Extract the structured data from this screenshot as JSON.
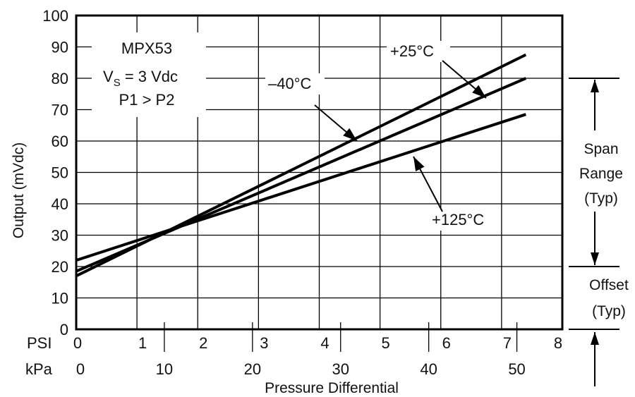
{
  "chart_data": {
    "type": "line",
    "ylabel": "Output (mVdc)",
    "xlabel": "Pressure Differential",
    "psi_label": "PSI",
    "kpa_label": "kPa",
    "psi_ticks": [
      "0",
      "1",
      "2",
      "3",
      "4",
      "5",
      "6",
      "7",
      "8"
    ],
    "kpa_ticks": [
      "0",
      "10",
      "20",
      "30",
      "40",
      "50"
    ],
    "y_ticks": [
      "0",
      "10",
      "20",
      "30",
      "40",
      "50",
      "60",
      "70",
      "80",
      "90",
      "100"
    ],
    "xlim_psi": [
      0,
      8
    ],
    "ylim": [
      0,
      100
    ],
    "grid": true,
    "info_box": [
      "MPX53",
      "V",
      "S",
      " = 3 Vdc",
      "P1 > P2"
    ],
    "series": [
      {
        "name": "+25°C",
        "x": [
          0,
          7.4
        ],
        "y": [
          18.5,
          80
        ]
      },
      {
        "name": "–40°C",
        "x": [
          0,
          7.4
        ],
        "y": [
          17,
          87.5
        ]
      },
      {
        "name": "+125°C",
        "x": [
          0,
          7.4
        ],
        "y": [
          22,
          68.5
        ]
      }
    ],
    "side_labels": {
      "span": [
        "Span",
        "Range",
        "(Typ)"
      ],
      "offset": [
        "Offset",
        "(Typ)"
      ]
    }
  }
}
